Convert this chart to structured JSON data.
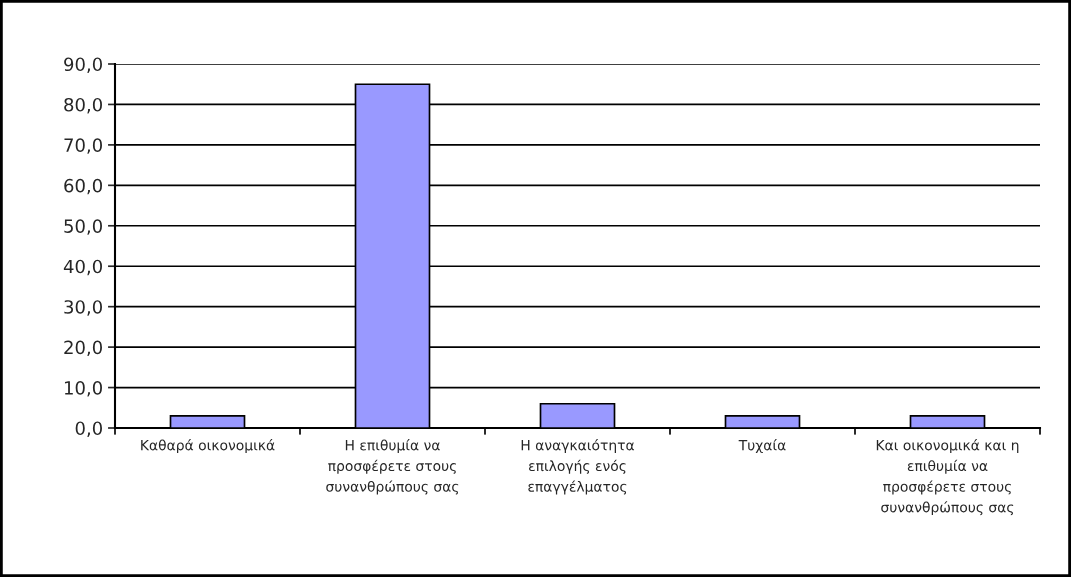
{
  "chart_data": {
    "type": "bar",
    "categories": [
      "Καθαρά οικονομικά",
      "Η επιθυμία να\nπροσφέρετε στους\nσυνανθρώπους σας",
      "Η αναγκαιότητα\nεπιλογής ενός\nεπαγγέλματος",
      "Τυχαία",
      "Και οικονομικά και η\nεπιθυμία να\nπροσφέρετε στους\nσυνανθρώπους σας"
    ],
    "values": [
      3,
      85,
      6,
      3,
      3
    ],
    "color": "#9999ff",
    "ylim": [
      0,
      90
    ],
    "yticks": [
      {
        "value": 0,
        "label": "0,0"
      },
      {
        "value": 10,
        "label": "10,0"
      },
      {
        "value": 20,
        "label": "20,0"
      },
      {
        "value": 30,
        "label": "30,0"
      },
      {
        "value": 40,
        "label": "40,0"
      },
      {
        "value": 50,
        "label": "50,0"
      },
      {
        "value": 60,
        "label": "60,0"
      },
      {
        "value": 70,
        "label": "70,0"
      },
      {
        "value": 80,
        "label": "80,0"
      },
      {
        "value": 90,
        "label": "90,0"
      }
    ],
    "grid": "y"
  }
}
